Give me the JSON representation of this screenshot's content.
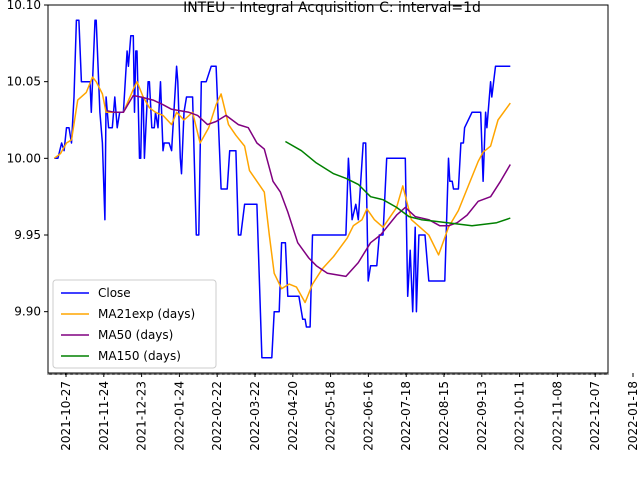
{
  "chart_data": {
    "type": "line",
    "title": "INTEU - Integral Acquisition C: interval=1d",
    "xlabel": "",
    "ylabel": "",
    "x_ticks": [
      "2021-10-27",
      "2021-11-24",
      "2021-12-23",
      "2022-01-24",
      "2022-02-22",
      "2022-03-22",
      "2022-04-20",
      "2022-05-18",
      "2022-06-16",
      "2022-07-18",
      "2022-08-15",
      "2022-09-13",
      "2022-10-11",
      "2022-11-08",
      "2022-12-07",
      "2022-01-18"
    ],
    "y_ticks": [
      "9.90",
      "9.95",
      "10.00",
      "10.05",
      "10.10"
    ],
    "xlim": [
      "2021-10-27",
      "2023-01-23"
    ],
    "ylim": [
      9.86,
      10.1
    ],
    "grid": false,
    "legend_position": "lower-left",
    "series": [
      {
        "name": "Close",
        "color": "#0000ff",
        "points": [
          [
            "2021-11-01",
            10.0
          ],
          [
            "2021-11-04",
            10.0
          ],
          [
            "2021-11-07",
            10.01
          ],
          [
            "2021-11-09",
            10.005
          ],
          [
            "2021-11-11",
            10.02
          ],
          [
            "2021-11-13",
            10.02
          ],
          [
            "2021-11-15",
            10.01
          ],
          [
            "2021-11-17",
            10.04
          ],
          [
            "2021-11-19",
            10.09
          ],
          [
            "2021-11-21",
            10.09
          ],
          [
            "2021-11-23",
            10.05
          ],
          [
            "2021-11-27",
            10.05
          ],
          [
            "2021-11-30",
            10.05
          ],
          [
            "2021-12-01",
            10.03
          ],
          [
            "2021-12-04",
            10.09
          ],
          [
            "2021-12-05",
            10.09
          ],
          [
            "2021-12-08",
            10.03
          ],
          [
            "2021-12-10",
            10.01
          ],
          [
            "2021-12-12",
            9.96
          ],
          [
            "2021-12-13",
            10.04
          ],
          [
            "2021-12-15",
            10.02
          ],
          [
            "2021-12-18",
            10.02
          ],
          [
            "2021-12-20",
            10.04
          ],
          [
            "2021-12-22",
            10.02
          ],
          [
            "2021-12-24",
            10.03
          ],
          [
            "2021-12-27",
            10.03
          ],
          [
            "2021-12-30",
            10.07
          ],
          [
            "2021-12-31",
            10.06
          ],
          [
            "2022-01-02",
            10.08
          ],
          [
            "2022-01-04",
            10.08
          ],
          [
            "2022-01-05",
            10.03
          ],
          [
            "2022-01-06",
            10.07
          ],
          [
            "2022-01-07",
            10.07
          ],
          [
            "2022-01-09",
            10.0
          ],
          [
            "2022-01-10",
            10.0
          ],
          [
            "2022-01-11",
            10.04
          ],
          [
            "2022-01-12",
            10.04
          ],
          [
            "2022-01-13",
            10.0
          ],
          [
            "2022-01-16",
            10.05
          ],
          [
            "2022-01-17",
            10.05
          ],
          [
            "2022-01-19",
            10.02
          ],
          [
            "2022-01-21",
            10.02
          ],
          [
            "2022-01-22",
            10.03
          ],
          [
            "2022-01-24",
            10.02
          ],
          [
            "2022-01-26",
            10.05
          ],
          [
            "2022-01-28",
            10.005
          ],
          [
            "2022-01-29",
            10.01
          ],
          [
            "2022-02-02",
            10.01
          ],
          [
            "2022-02-04",
            10.005
          ],
          [
            "2022-02-08",
            10.06
          ],
          [
            "2022-02-09",
            10.05
          ],
          [
            "2022-02-11",
            10.0
          ],
          [
            "2022-02-12",
            9.99
          ],
          [
            "2022-02-14",
            10.03
          ],
          [
            "2022-02-16",
            10.04
          ],
          [
            "2022-02-18",
            10.04
          ],
          [
            "2022-02-21",
            10.04
          ],
          [
            "2022-02-24",
            9.95
          ],
          [
            "2022-02-26",
            9.95
          ],
          [
            "2022-02-28",
            10.05
          ],
          [
            "2022-03-04",
            10.05
          ],
          [
            "2022-03-08",
            10.06
          ],
          [
            "2022-03-12",
            10.06
          ],
          [
            "2022-03-16",
            9.98
          ],
          [
            "2022-03-21",
            9.98
          ],
          [
            "2022-03-23",
            10.005
          ],
          [
            "2022-03-28",
            10.005
          ],
          [
            "2022-03-30",
            9.95
          ],
          [
            "2022-04-01",
            9.95
          ],
          [
            "2022-04-04",
            9.97
          ],
          [
            "2022-04-14",
            9.97
          ],
          [
            "2022-04-18",
            9.87
          ],
          [
            "2022-04-26",
            9.87
          ],
          [
            "2022-04-28",
            9.9
          ],
          [
            "2022-05-02",
            9.9
          ],
          [
            "2022-05-04",
            9.945
          ],
          [
            "2022-05-07",
            9.945
          ],
          [
            "2022-05-09",
            9.91
          ],
          [
            "2022-05-18",
            9.91
          ],
          [
            "2022-05-21",
            9.895
          ],
          [
            "2022-05-23",
            9.895
          ],
          [
            "2022-05-24",
            9.89
          ],
          [
            "2022-05-27",
            9.89
          ],
          [
            "2022-05-29",
            9.95
          ],
          [
            "2022-06-25",
            9.95
          ],
          [
            "2022-06-27",
            10.0
          ],
          [
            "2022-06-30",
            9.96
          ],
          [
            "2022-07-03",
            9.97
          ],
          [
            "2022-07-05",
            9.96
          ],
          [
            "2022-07-09",
            10.01
          ],
          [
            "2022-07-11",
            10.01
          ],
          [
            "2022-07-13",
            9.92
          ],
          [
            "2022-07-15",
            9.93
          ],
          [
            "2022-07-20",
            9.93
          ],
          [
            "2022-07-22",
            9.95
          ],
          [
            "2022-07-25",
            9.95
          ],
          [
            "2022-07-28",
            10.0
          ],
          [
            "2022-08-12",
            10.0
          ],
          [
            "2022-08-14",
            9.91
          ],
          [
            "2022-08-16",
            9.94
          ],
          [
            "2022-08-18",
            9.9
          ],
          [
            "2022-08-20",
            9.955
          ],
          [
            "2022-08-21",
            9.9
          ],
          [
            "2022-08-23",
            9.95
          ],
          [
            "2022-08-28",
            9.95
          ],
          [
            "2022-08-31",
            9.92
          ],
          [
            "2022-09-13",
            9.92
          ],
          [
            "2022-09-16",
            10.0
          ],
          [
            "2022-09-17",
            9.985
          ],
          [
            "2022-09-19",
            9.985
          ],
          [
            "2022-09-20",
            9.98
          ],
          [
            "2022-09-24",
            9.98
          ],
          [
            "2022-09-26",
            10.01
          ],
          [
            "2022-09-28",
            10.01
          ],
          [
            "2022-09-29",
            10.02
          ],
          [
            "2022-10-05",
            10.03
          ],
          [
            "2022-10-12",
            10.03
          ],
          [
            "2022-10-14",
            9.985
          ],
          [
            "2022-10-16",
            10.03
          ],
          [
            "2022-10-17",
            10.02
          ],
          [
            "2022-10-20",
            10.05
          ],
          [
            "2022-10-21",
            10.04
          ],
          [
            "2022-10-24",
            10.06
          ],
          [
            "2022-11-05",
            10.06
          ]
        ]
      },
      {
        "name": "MA21exp (days)",
        "color": "#ffa500",
        "points": [
          [
            "2021-11-01",
            10.0
          ],
          [
            "2021-11-06",
            10.003
          ],
          [
            "2021-11-11",
            10.01
          ],
          [
            "2021-11-15",
            10.012
          ],
          [
            "2021-11-20",
            10.038
          ],
          [
            "2021-11-27",
            10.043
          ],
          [
            "2021-12-02",
            10.053
          ],
          [
            "2021-12-05",
            10.05
          ],
          [
            "2021-12-10",
            10.042
          ],
          [
            "2021-12-13",
            10.03
          ],
          [
            "2021-12-20",
            10.03
          ],
          [
            "2021-12-27",
            10.03
          ],
          [
            "2022-01-04",
            10.045
          ],
          [
            "2022-01-07",
            10.05
          ],
          [
            "2022-01-12",
            10.04
          ],
          [
            "2022-01-17",
            10.033
          ],
          [
            "2022-01-22",
            10.03
          ],
          [
            "2022-01-28",
            10.028
          ],
          [
            "2022-02-04",
            10.022
          ],
          [
            "2022-02-08",
            10.03
          ],
          [
            "2022-02-14",
            10.025
          ],
          [
            "2022-02-21",
            10.03
          ],
          [
            "2022-02-27",
            10.01
          ],
          [
            "2022-03-06",
            10.02
          ],
          [
            "2022-03-12",
            10.035
          ],
          [
            "2022-03-16",
            10.042
          ],
          [
            "2022-03-22",
            10.022
          ],
          [
            "2022-03-28",
            10.015
          ],
          [
            "2022-04-04",
            10.008
          ],
          [
            "2022-04-08",
            9.992
          ],
          [
            "2022-04-14",
            9.985
          ],
          [
            "2022-04-20",
            9.978
          ],
          [
            "2022-04-24",
            9.95
          ],
          [
            "2022-04-28",
            9.925
          ],
          [
            "2022-05-04",
            9.915
          ],
          [
            "2022-05-10",
            9.918
          ],
          [
            "2022-05-16",
            9.916
          ],
          [
            "2022-05-23",
            9.906
          ],
          [
            "2022-05-29",
            9.918
          ],
          [
            "2022-06-06",
            9.928
          ],
          [
            "2022-06-15",
            9.936
          ],
          [
            "2022-06-26",
            9.948
          ],
          [
            "2022-07-01",
            9.956
          ],
          [
            "2022-07-08",
            9.96
          ],
          [
            "2022-07-12",
            9.967
          ],
          [
            "2022-07-18",
            9.96
          ],
          [
            "2022-07-25",
            9.955
          ],
          [
            "2022-08-05",
            9.968
          ],
          [
            "2022-08-10",
            9.982
          ],
          [
            "2022-08-17",
            9.96
          ],
          [
            "2022-08-24",
            9.955
          ],
          [
            "2022-08-31",
            9.95
          ],
          [
            "2022-09-08",
            9.937
          ],
          [
            "2022-09-16",
            9.955
          ],
          [
            "2022-09-24",
            9.966
          ],
          [
            "2022-10-02",
            9.982
          ],
          [
            "2022-10-10",
            9.998
          ],
          [
            "2022-10-14",
            10.004
          ],
          [
            "2022-10-20",
            10.008
          ],
          [
            "2022-10-26",
            10.025
          ],
          [
            "2022-11-05",
            10.036
          ]
        ]
      },
      {
        "name": "MA50 (days)",
        "color": "#800080",
        "points": [
          [
            "2021-12-14",
            10.031
          ],
          [
            "2021-12-20",
            10.03
          ],
          [
            "2021-12-27",
            10.03
          ],
          [
            "2022-01-04",
            10.041
          ],
          [
            "2022-01-10",
            10.04
          ],
          [
            "2022-01-20",
            10.038
          ],
          [
            "2022-01-28",
            10.035
          ],
          [
            "2022-02-04",
            10.032
          ],
          [
            "2022-02-18",
            10.03
          ],
          [
            "2022-02-25",
            10.028
          ],
          [
            "2022-03-05",
            10.022
          ],
          [
            "2022-03-12",
            10.024
          ],
          [
            "2022-03-20",
            10.028
          ],
          [
            "2022-03-30",
            10.022
          ],
          [
            "2022-04-07",
            10.02
          ],
          [
            "2022-04-14",
            10.01
          ],
          [
            "2022-04-20",
            10.006
          ],
          [
            "2022-04-27",
            9.985
          ],
          [
            "2022-05-03",
            9.978
          ],
          [
            "2022-05-09",
            9.965
          ],
          [
            "2022-05-17",
            9.945
          ],
          [
            "2022-05-26",
            9.935
          ],
          [
            "2022-06-01",
            9.93
          ],
          [
            "2022-06-10",
            9.925
          ],
          [
            "2022-06-25",
            9.923
          ],
          [
            "2022-07-05",
            9.932
          ],
          [
            "2022-07-15",
            9.945
          ],
          [
            "2022-07-23",
            9.95
          ],
          [
            "2022-08-05",
            9.963
          ],
          [
            "2022-08-12",
            9.968
          ],
          [
            "2022-08-20",
            9.962
          ],
          [
            "2022-08-31",
            9.96
          ],
          [
            "2022-09-09",
            9.956
          ],
          [
            "2022-09-16",
            9.956
          ],
          [
            "2022-09-23",
            9.958
          ],
          [
            "2022-10-01",
            9.963
          ],
          [
            "2022-10-10",
            9.972
          ],
          [
            "2022-10-20",
            9.975
          ],
          [
            "2022-10-28",
            9.985
          ],
          [
            "2022-11-05",
            9.996
          ]
        ]
      },
      {
        "name": "MA150 (days)",
        "color": "#008000",
        "points": [
          [
            "2022-05-07",
            10.011
          ],
          [
            "2022-05-20",
            10.005
          ],
          [
            "2022-06-01",
            9.997
          ],
          [
            "2022-06-15",
            9.99
          ],
          [
            "2022-06-25",
            9.987
          ],
          [
            "2022-07-05",
            9.983
          ],
          [
            "2022-07-15",
            9.975
          ],
          [
            "2022-07-25",
            9.973
          ],
          [
            "2022-08-05",
            9.968
          ],
          [
            "2022-08-15",
            9.962
          ],
          [
            "2022-08-25",
            9.96
          ],
          [
            "2022-09-05",
            9.959
          ],
          [
            "2022-09-15",
            9.958
          ],
          [
            "2022-09-25",
            9.957
          ],
          [
            "2022-10-05",
            9.956
          ],
          [
            "2022-10-15",
            9.957
          ],
          [
            "2022-10-25",
            9.958
          ],
          [
            "2022-11-05",
            9.961
          ]
        ]
      }
    ]
  }
}
